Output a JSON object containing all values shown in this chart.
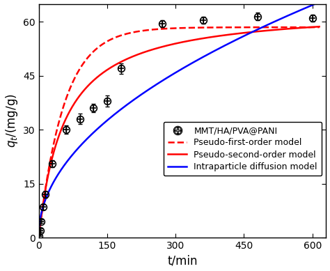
{
  "data_points_t": [
    1,
    3,
    5,
    10,
    15,
    30,
    60,
    90,
    120,
    150,
    180,
    270,
    360,
    480,
    600
  ],
  "data_points_q": [
    0.3,
    2.0,
    4.5,
    8.5,
    12.0,
    20.5,
    30.0,
    33.0,
    36.0,
    38.0,
    47.0,
    59.5,
    60.5,
    61.5,
    61.0
  ],
  "data_errors": [
    0.5,
    0.5,
    0.5,
    0.8,
    1.0,
    1.0,
    1.2,
    1.5,
    1.2,
    1.5,
    1.5,
    1.0,
    1.0,
    1.0,
    1.0
  ],
  "pfo_qe": 58.5,
  "pfo_k1": 0.018,
  "pso_qe": 64.0,
  "pso_k2": 0.00028,
  "ipd_ki": 2.62,
  "ipd_C": 0.5,
  "t_max": 615,
  "xlim": [
    0,
    630
  ],
  "ylim": [
    0,
    65
  ],
  "xticks": [
    0,
    150,
    300,
    450,
    600
  ],
  "yticks": [
    0,
    15,
    30,
    45,
    60
  ],
  "xlabel": "t/min",
  "ylabel": "$q_{t}$/(mg/g)",
  "line_red_solid": "#ff0000",
  "line_red_dashed": "#ff0000",
  "line_blue_solid": "#0000ff",
  "marker_color": "#000000",
  "legend_labels": [
    "MMT/HA/PVA@PANI",
    "Pseudo-first-order model",
    "Pseudo-second-order model",
    "Intraparticle diffusion model"
  ],
  "background_color": "#ffffff",
  "fontsize_label": 12,
  "fontsize_tick": 10,
  "fontsize_legend": 9
}
